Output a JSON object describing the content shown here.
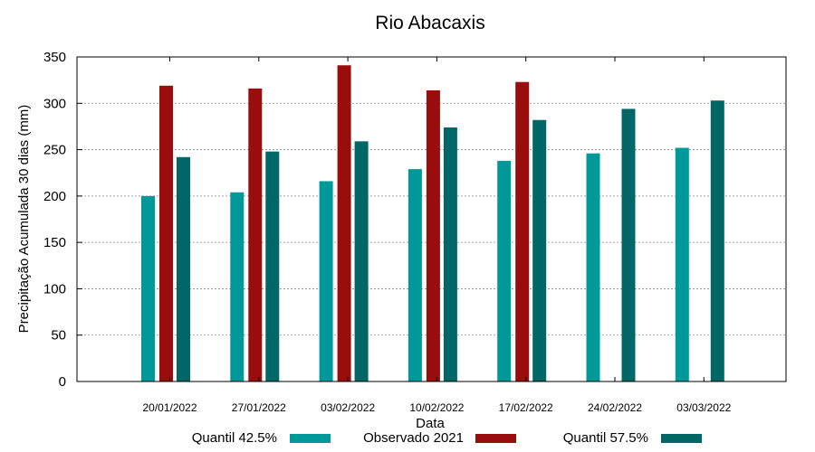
{
  "chart_data": {
    "type": "bar",
    "title": "Rio Abacaxis",
    "xlabel": "Data",
    "ylabel": "Precipitação Acumulada 30 dias (mm)",
    "ylim": [
      0,
      350
    ],
    "yticks": [
      0,
      50,
      100,
      150,
      200,
      250,
      300,
      350
    ],
    "grid": true,
    "legend_position": "bottom",
    "categories": [
      "20/01/2022",
      "27/01/2022",
      "03/02/2022",
      "10/02/2022",
      "17/02/2022",
      "24/02/2022",
      "03/03/2022"
    ],
    "series": [
      {
        "name": "Quantil 42.5%",
        "color": "#009999",
        "values": [
          200,
          204,
          216,
          229,
          238,
          246,
          252
        ]
      },
      {
        "name": "Observado 2021",
        "color": "#990d0d",
        "values": [
          319,
          316,
          341,
          314,
          323,
          null,
          null
        ]
      },
      {
        "name": "Quantil 57.5%",
        "color": "#006666",
        "values": [
          242,
          248,
          259,
          274,
          282,
          294,
          303
        ]
      }
    ]
  }
}
